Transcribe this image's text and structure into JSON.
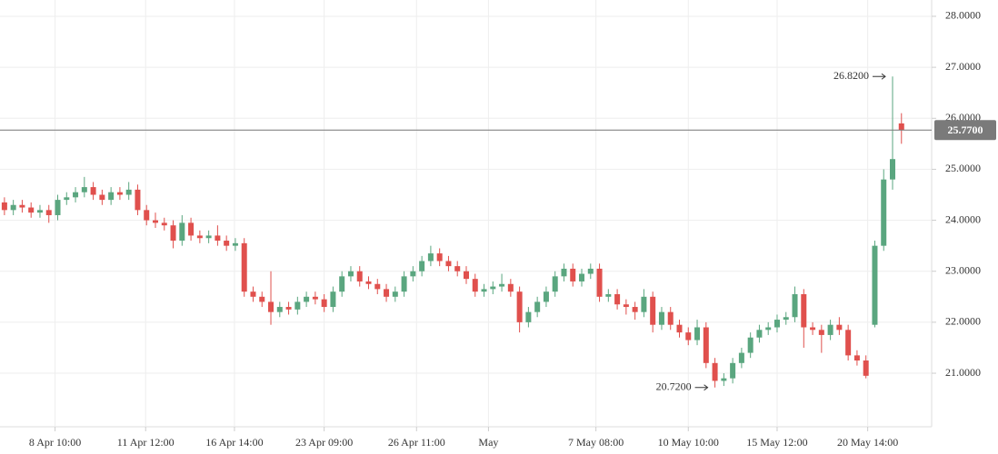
{
  "chart_data": {
    "type": "candlestick",
    "x": [
      0,
      1,
      2,
      3,
      4,
      5,
      6,
      7,
      8,
      9,
      10,
      11,
      12,
      13,
      14,
      15,
      16,
      17,
      18,
      19,
      20,
      21,
      22,
      23,
      24,
      25,
      26,
      27,
      28,
      29,
      30,
      31,
      32,
      33,
      34,
      35,
      36,
      37,
      38,
      39,
      40,
      41,
      42,
      43,
      44,
      45,
      46,
      47,
      48,
      49,
      50,
      51,
      52,
      53,
      54,
      55,
      56,
      57,
      58,
      59,
      60,
      61,
      62,
      63,
      64,
      65,
      66,
      67,
      68,
      69,
      70,
      71,
      72,
      73,
      74,
      75,
      76,
      77,
      78,
      79,
      80,
      81,
      82,
      83,
      84,
      85,
      86,
      87,
      88,
      89,
      90,
      91,
      92,
      93,
      94,
      95,
      96,
      97,
      98,
      99,
      100,
      101
    ],
    "open": [
      24.35,
      24.2,
      24.3,
      24.25,
      24.15,
      24.2,
      24.1,
      24.4,
      24.45,
      24.55,
      24.65,
      24.5,
      24.4,
      24.55,
      24.5,
      24.6,
      24.2,
      24.0,
      23.95,
      23.9,
      23.6,
      23.95,
      23.7,
      23.65,
      23.7,
      23.6,
      23.5,
      23.55,
      22.6,
      22.5,
      22.4,
      22.2,
      22.3,
      22.25,
      22.4,
      22.5,
      22.45,
      22.3,
      22.6,
      22.9,
      23.0,
      22.8,
      22.75,
      22.65,
      22.5,
      22.6,
      22.9,
      23.0,
      23.2,
      23.35,
      23.2,
      23.1,
      23.0,
      22.85,
      22.6,
      22.65,
      22.7,
      22.75,
      22.6,
      22.0,
      22.2,
      22.4,
      22.6,
      22.9,
      23.05,
      22.8,
      22.95,
      23.05,
      22.5,
      22.55,
      22.35,
      22.3,
      22.2,
      22.5,
      21.95,
      22.2,
      21.95,
      21.8,
      21.65,
      21.9,
      21.2,
      20.85,
      20.9,
      21.2,
      21.4,
      21.7,
      21.85,
      21.9,
      22.05,
      22.1,
      22.55,
      21.9,
      21.85,
      21.75,
      21.95,
      21.85,
      21.35,
      21.25,
      21.95,
      23.5,
      24.8,
      25.9
    ],
    "high": [
      24.45,
      24.4,
      24.4,
      24.35,
      24.3,
      24.3,
      24.5,
      24.55,
      24.65,
      24.85,
      24.75,
      24.6,
      24.65,
      24.65,
      24.75,
      24.7,
      24.3,
      24.15,
      24.05,
      24.0,
      24.1,
      24.05,
      23.8,
      23.8,
      23.9,
      23.7,
      23.65,
      23.65,
      22.7,
      22.6,
      23.0,
      22.4,
      22.4,
      22.5,
      22.6,
      22.6,
      22.55,
      22.7,
      23.0,
      23.1,
      23.1,
      22.9,
      22.85,
      22.75,
      22.7,
      23.0,
      23.1,
      23.3,
      23.5,
      23.45,
      23.3,
      23.2,
      23.1,
      22.95,
      22.75,
      22.8,
      22.95,
      22.85,
      22.7,
      22.3,
      22.5,
      22.7,
      23.0,
      23.15,
      23.15,
      23.05,
      23.15,
      23.15,
      22.65,
      22.65,
      22.45,
      22.4,
      22.65,
      22.6,
      22.3,
      22.3,
      22.05,
      21.9,
      22.05,
      22.0,
      21.3,
      21.0,
      21.3,
      21.5,
      21.8,
      21.95,
      22.0,
      22.15,
      22.2,
      22.7,
      22.65,
      22.0,
      21.95,
      22.05,
      22.1,
      21.95,
      21.45,
      21.35,
      23.6,
      25.0,
      26.82,
      26.1
    ],
    "low": [
      24.1,
      24.1,
      24.15,
      24.05,
      24.05,
      23.95,
      24.0,
      24.3,
      24.35,
      24.45,
      24.4,
      24.3,
      24.3,
      24.4,
      24.4,
      24.1,
      23.9,
      23.85,
      23.8,
      23.45,
      23.5,
      23.6,
      23.55,
      23.55,
      23.5,
      23.4,
      23.4,
      22.5,
      22.4,
      22.3,
      21.95,
      22.1,
      22.15,
      22.15,
      22.3,
      22.35,
      22.2,
      22.2,
      22.5,
      22.8,
      22.7,
      22.65,
      22.55,
      22.4,
      22.4,
      22.5,
      22.8,
      22.9,
      23.1,
      23.1,
      23.0,
      22.9,
      22.75,
      22.5,
      22.5,
      22.55,
      22.6,
      22.5,
      21.8,
      21.9,
      22.1,
      22.3,
      22.5,
      22.8,
      22.7,
      22.7,
      22.85,
      22.4,
      22.4,
      22.25,
      22.15,
      22.05,
      22.1,
      21.8,
      21.85,
      21.85,
      21.7,
      21.55,
      21.55,
      21.1,
      20.72,
      20.75,
      20.8,
      21.1,
      21.3,
      21.6,
      21.75,
      21.8,
      21.95,
      22.0,
      21.5,
      21.75,
      21.4,
      21.65,
      21.75,
      21.25,
      21.15,
      20.9,
      21.9,
      23.4,
      24.6,
      25.5
    ],
    "close": [
      24.2,
      24.3,
      24.25,
      24.15,
      24.2,
      24.1,
      24.4,
      24.45,
      24.55,
      24.65,
      24.5,
      24.4,
      24.55,
      24.5,
      24.6,
      24.2,
      24.0,
      23.95,
      23.9,
      23.6,
      23.95,
      23.7,
      23.65,
      23.7,
      23.6,
      23.5,
      23.55,
      22.6,
      22.5,
      22.4,
      22.2,
      22.3,
      22.25,
      22.4,
      22.5,
      22.45,
      22.3,
      22.6,
      22.9,
      23.0,
      22.8,
      22.75,
      22.65,
      22.5,
      22.6,
      22.9,
      23.0,
      23.2,
      23.35,
      23.2,
      23.1,
      23.0,
      22.85,
      22.6,
      22.65,
      22.7,
      22.75,
      22.6,
      22.0,
      22.2,
      22.4,
      22.6,
      22.9,
      23.05,
      22.8,
      22.95,
      23.05,
      22.5,
      22.55,
      22.35,
      22.3,
      22.2,
      22.5,
      21.95,
      22.2,
      21.95,
      21.8,
      21.65,
      21.9,
      21.2,
      20.85,
      20.9,
      21.2,
      21.4,
      21.7,
      21.85,
      21.9,
      22.05,
      22.1,
      22.55,
      21.9,
      21.85,
      21.75,
      21.95,
      21.85,
      21.35,
      21.25,
      20.95,
      23.5,
      24.8,
      25.2,
      25.77
    ],
    "up_color": "#5aa67f",
    "down_color": "#e0504d",
    "xlim": [
      -0.5,
      104.4
    ],
    "ylim": [
      19.95,
      28.32
    ],
    "xticks": [
      {
        "value": 5.7,
        "label": "8 Apr 10:00"
      },
      {
        "value": 15.9,
        "label": "11 Apr 12:00"
      },
      {
        "value": 25.9,
        "label": "16 Apr 14:00"
      },
      {
        "value": 36.0,
        "label": "23 Apr 09:00"
      },
      {
        "value": 46.4,
        "label": "26 Apr 11:00"
      },
      {
        "value": 54.5,
        "label": "May"
      },
      {
        "value": 66.6,
        "label": "7 May 08:00"
      },
      {
        "value": 77.0,
        "label": "10 May 10:00"
      },
      {
        "value": 87.0,
        "label": "15 May 12:00"
      },
      {
        "value": 97.2,
        "label": "20 May 14:00"
      }
    ],
    "yticks": [
      {
        "value": 21,
        "label": "21.0000"
      },
      {
        "value": 22,
        "label": "22.0000"
      },
      {
        "value": 23,
        "label": "23.0000"
      },
      {
        "value": 24,
        "label": "24.0000"
      },
      {
        "value": 25,
        "label": "25.0000"
      },
      {
        "value": 26,
        "label": "26.0000"
      },
      {
        "value": 27,
        "label": "27.0000"
      },
      {
        "value": 28,
        "label": "28.0000"
      }
    ],
    "grid": true,
    "annotations": [
      {
        "label": "26.8200",
        "value": 26.82,
        "x": 100
      },
      {
        "label": "20.7200",
        "value": 20.72,
        "x": 80
      }
    ],
    "last_price": {
      "value": 25.77,
      "label": "25.7700"
    }
  }
}
